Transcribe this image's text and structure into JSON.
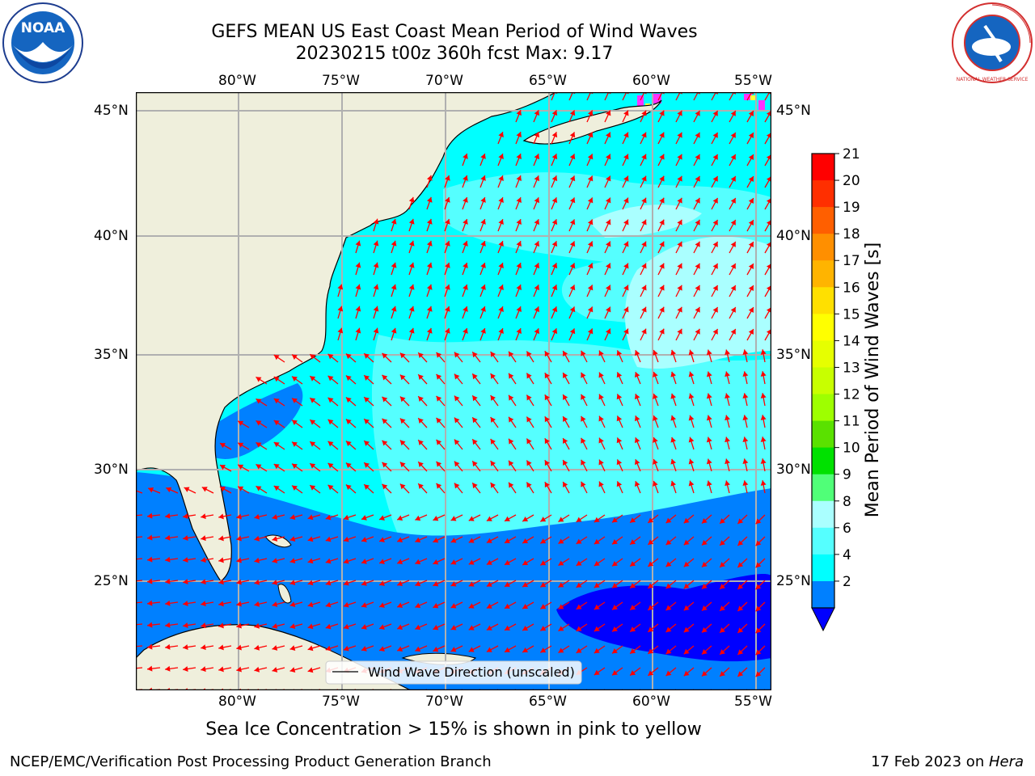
{
  "header": {
    "title_line1": "GEFS MEAN US East Coast Mean Period of Wind Waves",
    "title_line2": "20230215 t00z 360h fcst   Max: 9.17"
  },
  "logos": {
    "left": {
      "icon": "noaa-logo",
      "text": "NOAA"
    },
    "right": {
      "icon": "nws-logo",
      "text": "NATIONAL WEATHER SERVICE"
    }
  },
  "map": {
    "lon_labels": [
      "80°W",
      "75°W",
      "70°W",
      "65°W",
      "60°W",
      "55°W"
    ],
    "lat_labels": [
      "45°N",
      "40°N",
      "35°N",
      "30°N",
      "25°N"
    ],
    "legend_label": "Wind Wave Direction (unscaled)",
    "arrow_color": "#ff0000",
    "land_color": "#efefdc",
    "grid_color": "#b0b0b0"
  },
  "colorbar": {
    "label": "Mean Period of Wind Waves [s]",
    "ticks": [
      "21",
      "20",
      "19",
      "18",
      "17",
      "16",
      "15",
      "14",
      "13",
      "12",
      "11",
      "10",
      "9",
      "8",
      "6",
      "4",
      "2"
    ],
    "colors": [
      "#ff0000",
      "#ff2f00",
      "#ff5f00",
      "#ff8f00",
      "#ffb400",
      "#ffe000",
      "#ffff00",
      "#e6ff00",
      "#c8ff00",
      "#9eff00",
      "#5ae100",
      "#00e100",
      "#50ff78",
      "#aaffff",
      "#55ffff",
      "#00ffff",
      "#0080ff"
    ],
    "extend_color": "#0000ff"
  },
  "footer": {
    "subtitle": "Sea Ice Concentration > 15% is shown in pink to yellow",
    "left": "NCEP/EMC/Verification Post Processing Product Generation Branch",
    "right_date": "17 Feb 2023 on ",
    "right_host": "Hera"
  }
}
